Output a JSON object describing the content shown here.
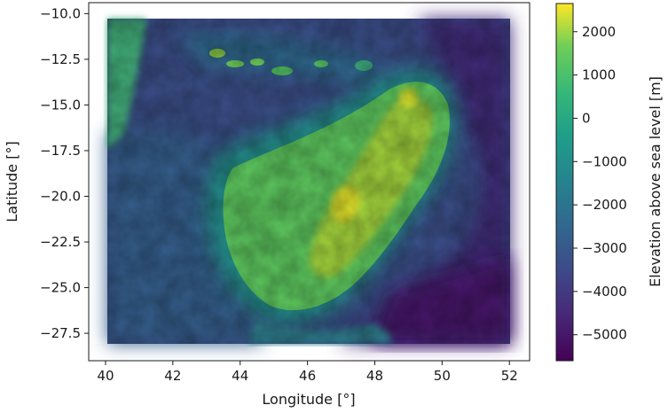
{
  "chart_data": {
    "type": "heatmap",
    "title": "",
    "xlabel": "Longitude [°]",
    "ylabel": "Latitude [°]",
    "xlim": [
      39.5,
      52.6
    ],
    "ylim": [
      -29.0,
      -9.4
    ],
    "x_ticks": [
      40,
      42,
      44,
      46,
      48,
      50,
      52
    ],
    "x_tick_labels": [
      "40",
      "42",
      "44",
      "46",
      "48",
      "50",
      "52"
    ],
    "y_ticks": [
      -10.0,
      -12.5,
      -15.0,
      -17.5,
      -20.0,
      -22.5,
      -25.0,
      -27.5
    ],
    "y_tick_labels": [
      "−10.0",
      "−12.5",
      "−15.0",
      "−17.5",
      "−20.0",
      "−22.5",
      "−25.0",
      "−27.5"
    ],
    "data_extent": {
      "lon": [
        40,
        52
      ],
      "lat": [
        -28,
        -10
      ]
    },
    "colorbar": {
      "label": "Elevation above sea level [m]",
      "colormap": "viridis",
      "range": [
        -5600,
        2650
      ],
      "ticks": [
        2000,
        1000,
        0,
        -1000,
        -2000,
        -3000,
        -4000,
        -5000
      ],
      "tick_labels": [
        "2000",
        "1000",
        "0",
        "−1000",
        "−2000",
        "−3000",
        "−4000",
        "−5000"
      ]
    },
    "grid": false,
    "legend": "none"
  }
}
